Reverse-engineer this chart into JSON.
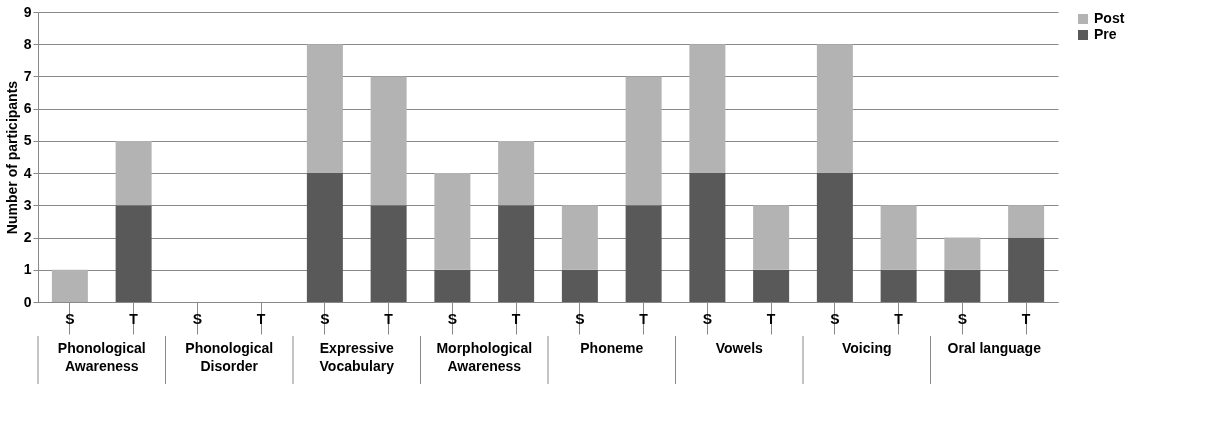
{
  "chart_data": {
    "type": "bar",
    "stacked": true,
    "ylabel": "Number of participants",
    "categories": [
      "S",
      "T",
      "S",
      "T",
      "S",
      "T",
      "S",
      "T",
      "S",
      "T",
      "S",
      "T",
      "S",
      "T",
      "S",
      "T"
    ],
    "annotations": [
      "Phonological Awareness",
      "Phonological Disorder",
      "Expressive Vocabulary",
      "Morphological Awareness",
      "Phoneme",
      "Vowels",
      "Voicing",
      "Oral language"
    ],
    "series": [
      {
        "name": "Pre",
        "color": "#595959",
        "values": [
          0,
          3,
          0,
          0,
          4,
          3,
          1,
          3,
          1,
          3,
          4,
          1,
          4,
          1,
          1,
          2
        ]
      },
      {
        "name": "Post",
        "color": "#b3b3b3",
        "values": [
          1,
          2,
          0,
          0,
          4,
          4,
          3,
          2,
          2,
          4,
          4,
          2,
          4,
          2,
          1,
          1
        ]
      }
    ],
    "ylim": [
      0,
      9
    ],
    "yticks": [
      0,
      1,
      2,
      3,
      4,
      5,
      6,
      7,
      8,
      9
    ],
    "grid": "y",
    "legend": "right"
  }
}
